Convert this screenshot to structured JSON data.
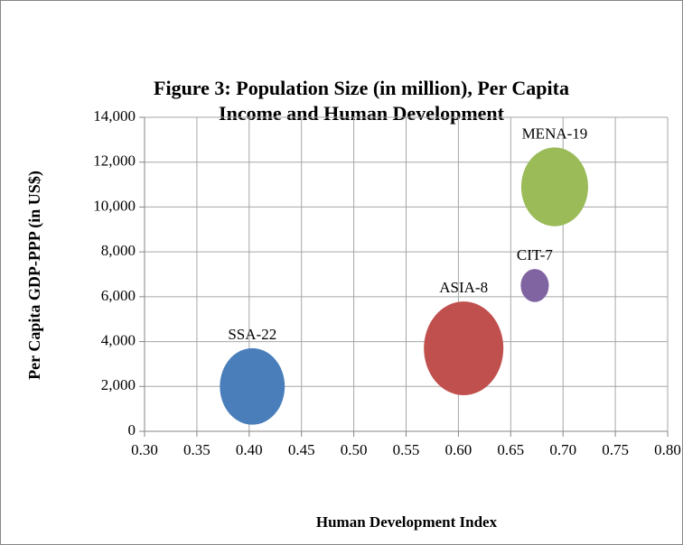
{
  "chart_data": {
    "type": "bubble",
    "title": "Figure 3: Population Size (in million),  Per Capita",
    "subtitle": "Income and Human Development",
    "x_label": "Human Development Index",
    "y_label": "Per Capita  GDP-PPP  (in US$)",
    "xlim": [
      0.3,
      0.8
    ],
    "xticks": [
      {
        "value": 0.3,
        "label": "0.30"
      },
      {
        "value": 0.35,
        "label": "0.35"
      },
      {
        "value": 0.4,
        "label": "0.40"
      },
      {
        "value": 0.45,
        "label": "0.45"
      },
      {
        "value": 0.5,
        "label": "0.50"
      },
      {
        "value": 0.55,
        "label": "0.55"
      },
      {
        "value": 0.6,
        "label": "0.60"
      },
      {
        "value": 0.65,
        "label": "0.65"
      },
      {
        "value": 0.7,
        "label": "0.70"
      },
      {
        "value": 0.75,
        "label": "0.75"
      },
      {
        "value": 0.8,
        "label": "0.80"
      }
    ],
    "ylim": [
      0,
      14000
    ],
    "yticks": [
      0,
      {
        "value": 2000,
        "label": "2,000"
      },
      {
        "value": 4000,
        "label": "4,000"
      },
      {
        "value": 6000,
        "label": "6,000"
      },
      {
        "value": 8000,
        "label": "8,000"
      },
      {
        "value": 10000,
        "label": "10,000"
      },
      {
        "value": 12000,
        "label": "12,000"
      },
      {
        "value": 14000,
        "label": "14,000"
      }
    ],
    "grid": true,
    "series": [
      {
        "name": "SSA-22",
        "color": "#4a7ebb",
        "x": [
          0.403
        ],
        "values": [
          2000
        ],
        "sizes": [
          800
        ]
      },
      {
        "name": "ASIA-8",
        "color": "#c0504d",
        "x": [
          0.605
        ],
        "values": [
          3700
        ],
        "sizes": [
          1200
        ]
      },
      {
        "name": "CIT-7",
        "color": "#8064a2",
        "x": [
          0.673
        ],
        "values": [
          6500
        ],
        "sizes": [
          150
        ]
      },
      {
        "name": "MENA-19",
        "color": "#9bbb59",
        "x": [
          0.692
        ],
        "values": [
          10900
        ],
        "sizes": [
          850
        ]
      }
    ]
  }
}
